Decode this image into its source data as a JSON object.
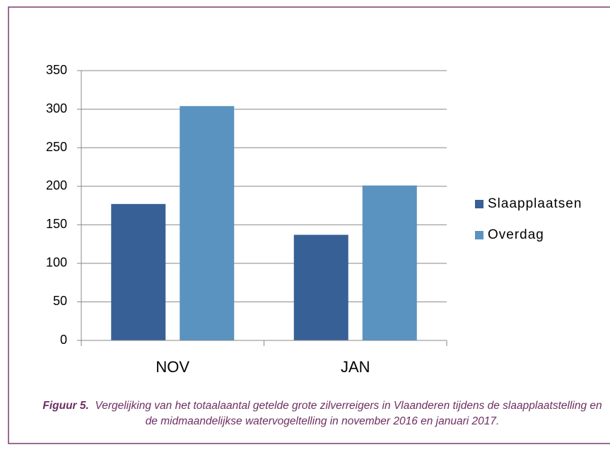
{
  "chart_data": {
    "type": "bar",
    "categories": [
      "NOV",
      "JAN"
    ],
    "series": [
      {
        "name": "Slaapplaatsen",
        "color": "#376096",
        "values": [
          177,
          137
        ]
      },
      {
        "name": "Overdag",
        "color": "#5a93c0",
        "values": [
          304,
          201
        ]
      }
    ],
    "ylim": [
      0,
      350
    ],
    "yticks": [
      0,
      50,
      100,
      150,
      200,
      250,
      300,
      350
    ],
    "grid": true,
    "legend": "right",
    "caption_label": "Figuur 5.",
    "caption": "Vergelijking van het totaalaantal getelde grote zilverreigers in Vlaanderen tijdens de slaapplaatstelling en de midmaandelijkse watervogeltelling in november 2016 en januari 2017."
  }
}
